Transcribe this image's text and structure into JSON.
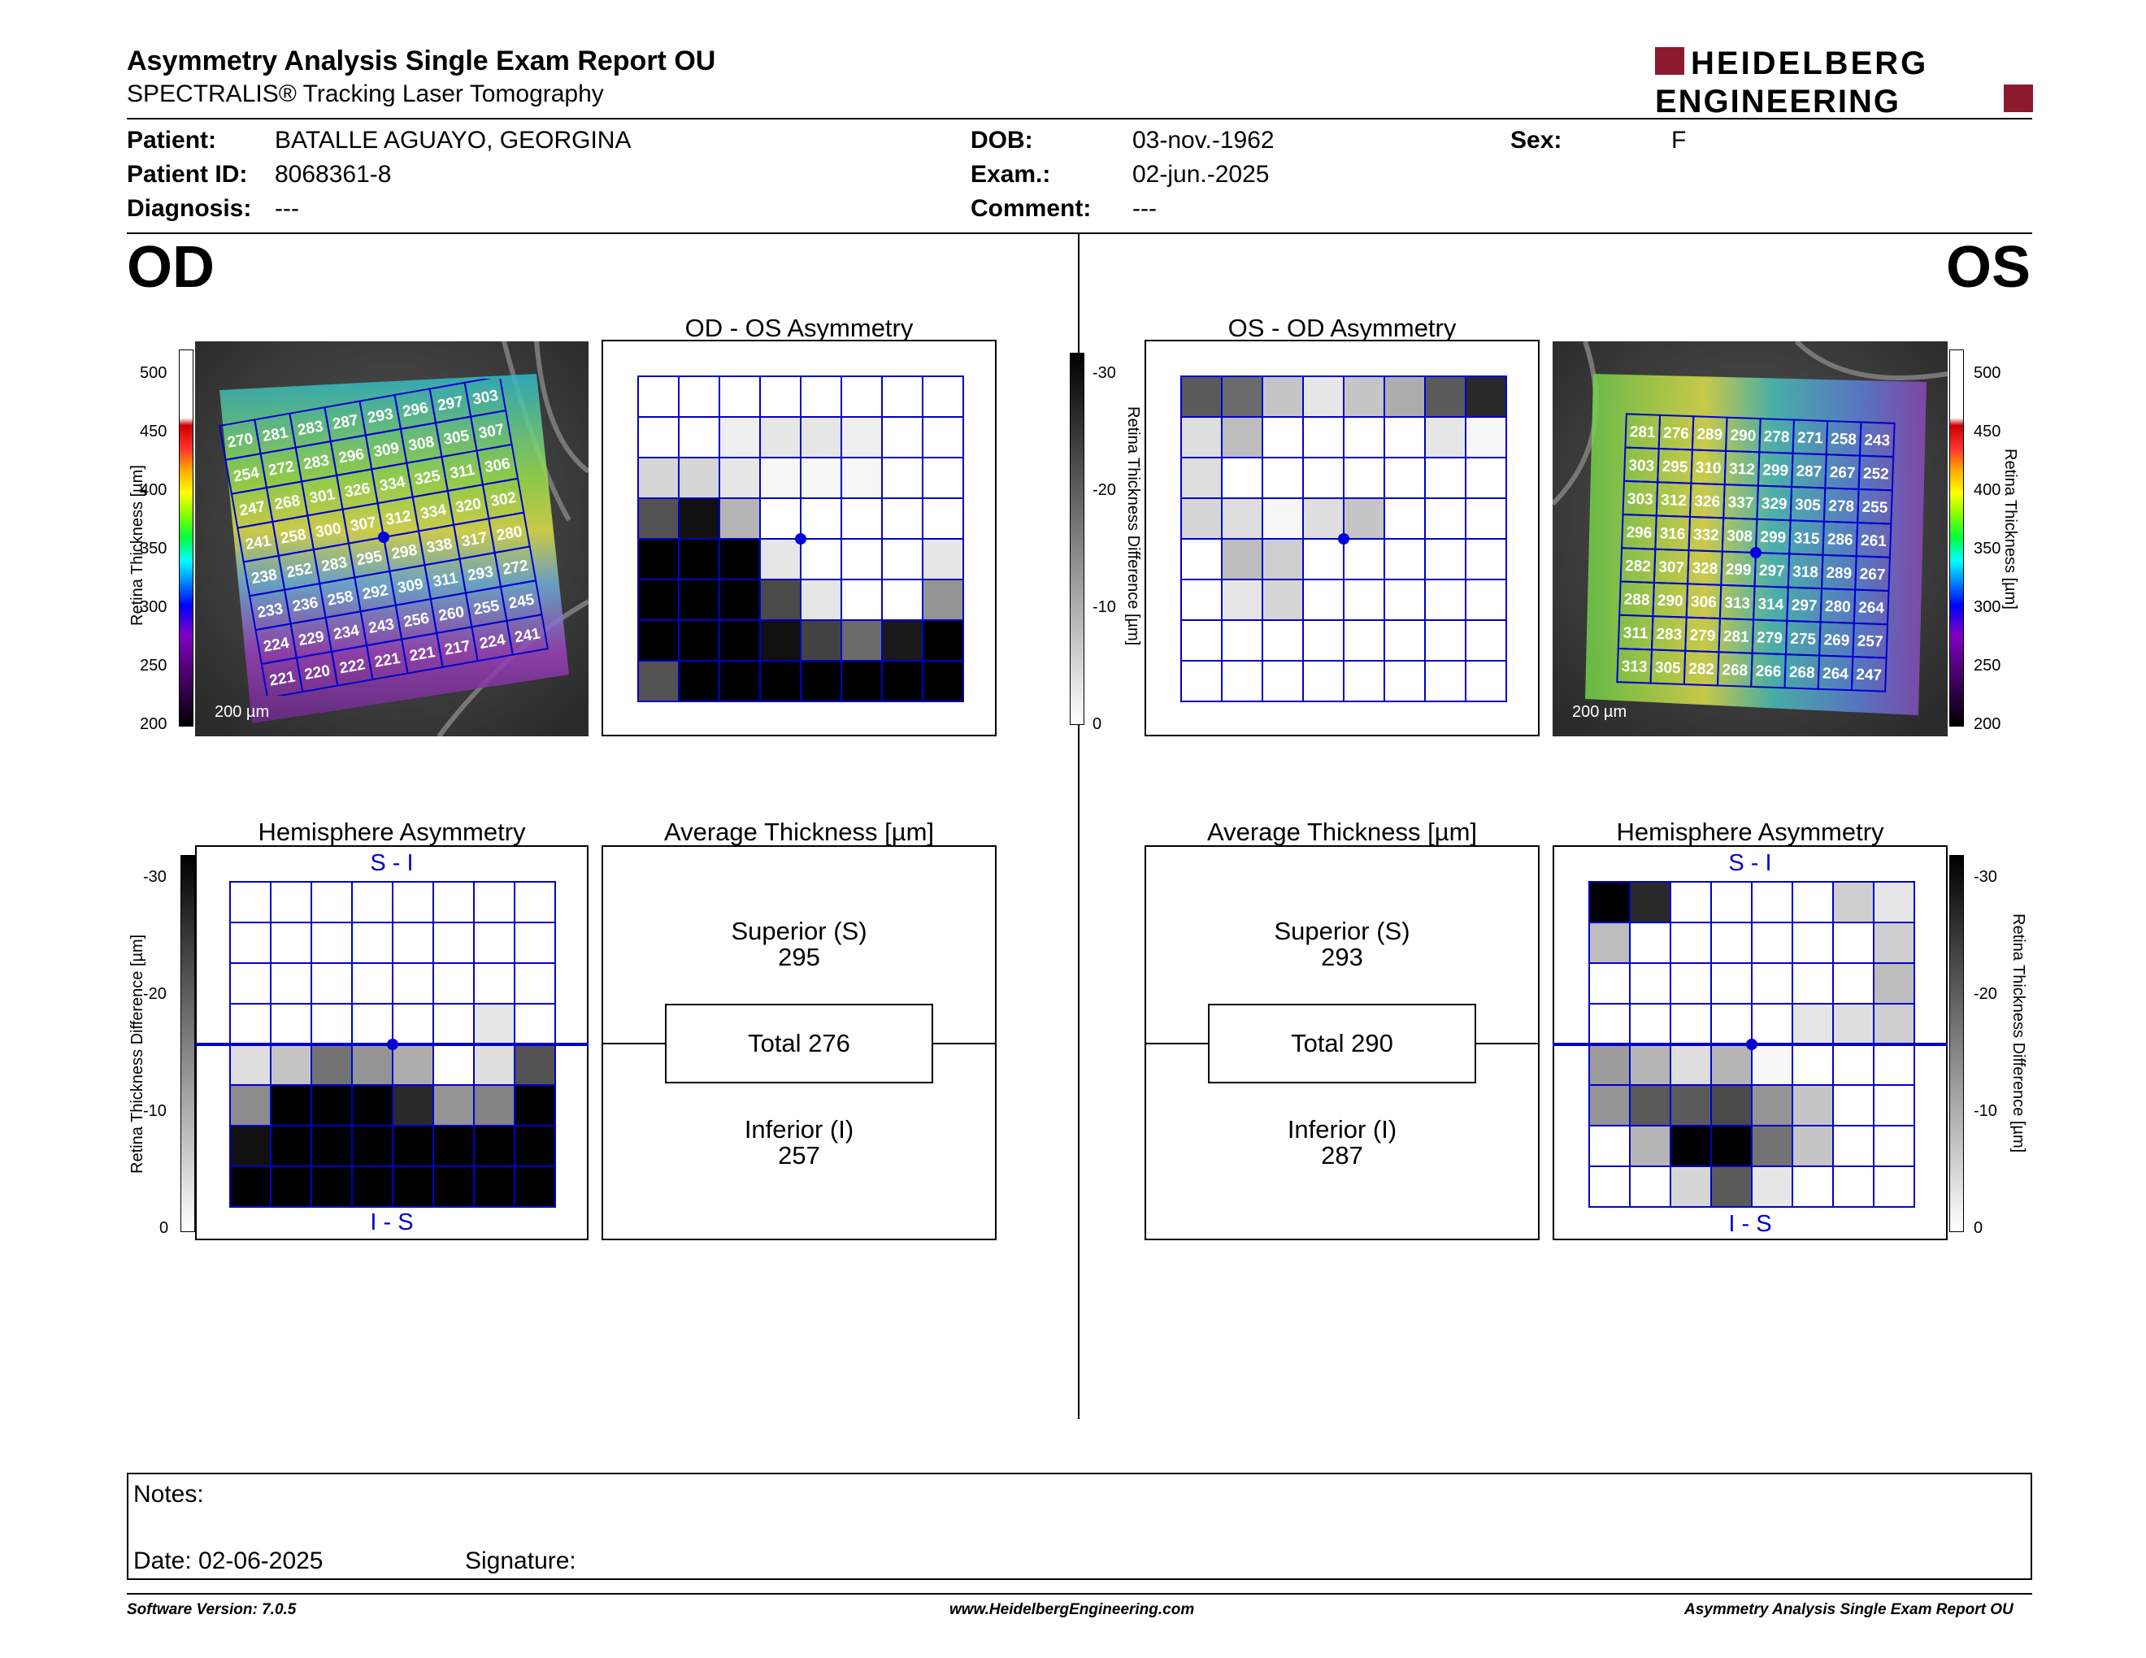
{
  "header": {
    "title": "Asymmetry Analysis Single Exam Report OU",
    "subtitle": "SPECTRALIS® Tracking Laser Tomography",
    "logo_line1": "HEIDELBERG",
    "logo_line2": "ENGINEERING",
    "brand_color": "#8b1a2f"
  },
  "patient": {
    "patient_label": "Patient:",
    "patient_value": "BATALLE AGUAYO, GEORGINA",
    "id_label": "Patient ID:",
    "id_value": "8068361-8",
    "diagnosis_label": "Diagnosis:",
    "diagnosis_value": "---",
    "dob_label": "DOB:",
    "dob_value": "03-nov.-1962",
    "exam_label": "Exam.:",
    "exam_value": "02-jun.-2025",
    "comment_label": "Comment:",
    "comment_value": "---",
    "sex_label": "Sex:",
    "sex_value": "F"
  },
  "od": {
    "eye_label": "OD",
    "asym_title": "OD - OS Asymmetry",
    "hemi_title": "Hemisphere Asymmetry",
    "hemi_top": "S - I",
    "hemi_bottom": "I - S",
    "avg_title": "Average Thickness [µm]",
    "superior_label": "Superior (S)",
    "superior_value": "295",
    "total_label": "Total 276",
    "inferior_label": "Inferior (I)",
    "inferior_value": "257",
    "scale_bar": "200 µm",
    "thickness_grid": [
      [
        "270",
        "281",
        "283",
        "287",
        "293",
        "296",
        "297",
        "303"
      ],
      [
        "254",
        "272",
        "283",
        "296",
        "309",
        "308",
        "305",
        "307"
      ],
      [
        "247",
        "268",
        "301",
        "326",
        "334",
        "325",
        "311",
        "306"
      ],
      [
        "241",
        "258",
        "300",
        "307",
        "312",
        "334",
        "320",
        "302"
      ],
      [
        "238",
        "252",
        "283",
        "295",
        "298",
        "338",
        "317",
        "280"
      ],
      [
        "233",
        "236",
        "258",
        "292",
        "309",
        "311",
        "293",
        "272"
      ],
      [
        "224",
        "229",
        "234",
        "243",
        "256",
        "260",
        "255",
        "245"
      ],
      [
        "221",
        "220",
        "222",
        "221",
        "221",
        "217",
        "224",
        "241"
      ]
    ],
    "asym_grid": [
      [
        0,
        0,
        0,
        0,
        0,
        0,
        0,
        0
      ],
      [
        0,
        0,
        2,
        3,
        3,
        2,
        0,
        0
      ],
      [
        5,
        5,
        3,
        1,
        1,
        1,
        0,
        0
      ],
      [
        21,
        29,
        9,
        0,
        0,
        0,
        0,
        0
      ],
      [
        31,
        31,
        31,
        3,
        0,
        0,
        0,
        3
      ],
      [
        31,
        31,
        31,
        22,
        3,
        0,
        0,
        13
      ],
      [
        31,
        31,
        31,
        29,
        23,
        18,
        28,
        31
      ],
      [
        21,
        31,
        31,
        31,
        31,
        31,
        31,
        31
      ]
    ],
    "hemi_grid": [
      [
        0,
        0,
        0,
        0,
        0,
        0,
        0,
        0
      ],
      [
        0,
        0,
        0,
        0,
        0,
        0,
        0,
        0
      ],
      [
        0,
        0,
        0,
        0,
        0,
        0,
        0,
        0
      ],
      [
        0,
        0,
        0,
        0,
        0,
        0,
        3,
        0
      ],
      [
        4,
        7,
        17,
        13,
        10,
        0,
        4,
        21
      ],
      [
        14,
        31,
        31,
        31,
        26,
        13,
        15,
        31
      ],
      [
        29,
        31,
        31,
        31,
        31,
        31,
        31,
        31
      ],
      [
        31,
        31,
        31,
        31,
        31,
        31,
        31,
        31
      ]
    ]
  },
  "os": {
    "eye_label": "OS",
    "asym_title": "OS - OD Asymmetry",
    "hemi_title": "Hemisphere Asymmetry",
    "hemi_top": "S - I",
    "hemi_bottom": "I - S",
    "avg_title": "Average Thickness [µm]",
    "superior_label": "Superior (S)",
    "superior_value": "293",
    "total_label": "Total 290",
    "inferior_label": "Inferior (I)",
    "inferior_value": "287",
    "scale_bar": "200 µm",
    "thickness_grid": [
      [
        "281",
        "276",
        "289",
        "290",
        "278",
        "271",
        "258",
        "243"
      ],
      [
        "303",
        "295",
        "310",
        "312",
        "299",
        "287",
        "267",
        "252"
      ],
      [
        "303",
        "312",
        "326",
        "337",
        "329",
        "305",
        "278",
        "255"
      ],
      [
        "296",
        "316",
        "332",
        "308",
        "299",
        "315",
        "286",
        "261"
      ],
      [
        "282",
        "307",
        "328",
        "299",
        "297",
        "318",
        "289",
        "267"
      ],
      [
        "288",
        "290",
        "306",
        "313",
        "314",
        "297",
        "280",
        "264"
      ],
      [
        "311",
        "283",
        "279",
        "281",
        "279",
        "275",
        "269",
        "257"
      ],
      [
        "313",
        "305",
        "282",
        "268",
        "266",
        "268",
        "264",
        "247"
      ]
    ],
    "asym_grid": [
      [
        20,
        18,
        7,
        3,
        7,
        10,
        20,
        26
      ],
      [
        4,
        8,
        0,
        0,
        0,
        0,
        3,
        1
      ],
      [
        4,
        0,
        0,
        0,
        0,
        0,
        0,
        0
      ],
      [
        5,
        4,
        1,
        4,
        7,
        0,
        0,
        0
      ],
      [
        0,
        8,
        6,
        0,
        0,
        0,
        0,
        0
      ],
      [
        0,
        3,
        5,
        0,
        0,
        0,
        0,
        0
      ],
      [
        0,
        0,
        0,
        0,
        0,
        0,
        0,
        0
      ],
      [
        0,
        0,
        0,
        0,
        0,
        0,
        0,
        0
      ]
    ],
    "hemi_grid": [
      [
        31,
        26,
        0,
        0,
        0,
        0,
        6,
        3
      ],
      [
        8,
        0,
        0,
        0,
        0,
        0,
        0,
        6
      ],
      [
        0,
        0,
        0,
        0,
        0,
        0,
        0,
        8
      ],
      [
        0,
        0,
        0,
        0,
        0,
        3,
        4,
        6
      ],
      [
        12,
        9,
        4,
        9,
        1,
        0,
        0,
        0
      ],
      [
        13,
        20,
        20,
        22,
        13,
        7,
        0,
        0
      ],
      [
        0,
        9,
        31,
        31,
        17,
        7,
        0,
        0
      ],
      [
        0,
        0,
        5,
        20,
        3,
        0,
        0,
        0
      ]
    ]
  },
  "scales": {
    "thickness_ticks": [
      "500",
      "450",
      "400",
      "350",
      "300",
      "250",
      "200"
    ],
    "thickness_label": "Retina  Thickness [µm]",
    "diff_ticks": [
      "-30",
      "-20",
      "-10",
      "0"
    ],
    "diff_label": "Retina Thickness Difference [µm]"
  },
  "notes": {
    "notes_label": "Notes:",
    "date_label": "Date: 02-06-2025",
    "signature_label": "Signature:"
  },
  "footer": {
    "software": "Software Version: 7.0.5",
    "website": "www.HeidelbergEngineering.com",
    "report_name": "Asymmetry Analysis Single Exam Report OU"
  },
  "colors": {
    "grid_line": "#0000cc",
    "fovea_dot": "#0000dd"
  }
}
